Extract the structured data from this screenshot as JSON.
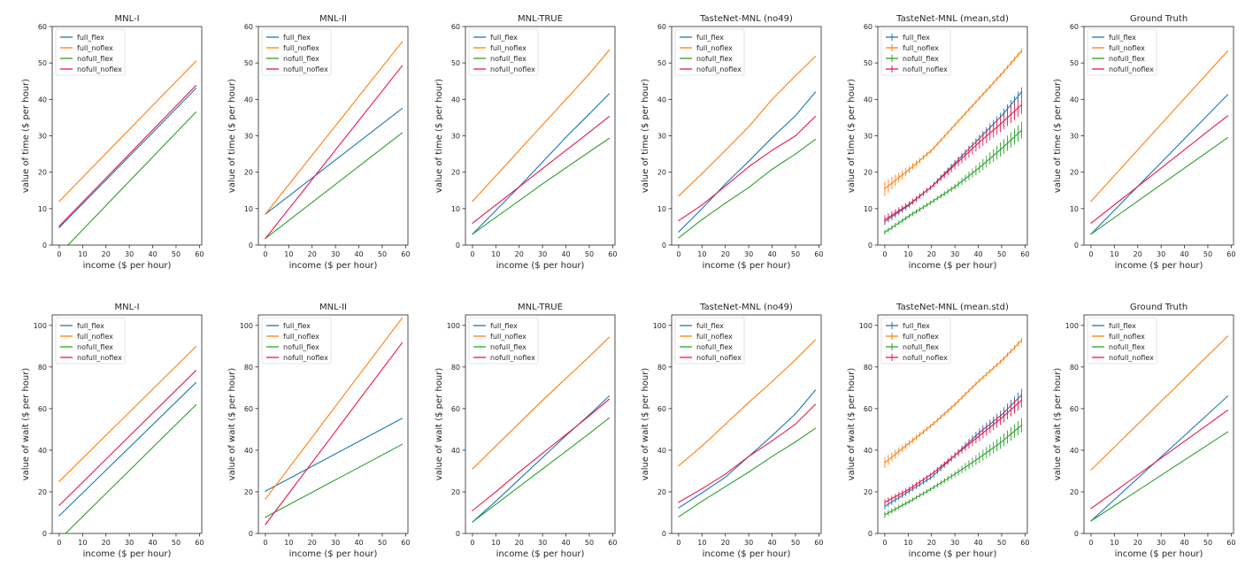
{
  "figure": {
    "description": "Grid of 12 line charts: value of time (top row) and value of wait (bottom row) vs income for four segments across six models"
  },
  "legend_labels": [
    "full_flex",
    "full_noflex",
    "nofull_flex",
    "nofull_noflex"
  ],
  "series_colors": {
    "full_flex": "#1f77b4",
    "full_noflex": "#ff7f0e",
    "nofull_flex": "#2ca02c",
    "nofull_noflex": "#e6194b"
  },
  "chart_data": [
    {
      "type": "line",
      "title": "MNL-I",
      "xlabel": "income ($ per hour)",
      "ylabel": "value of time ($ per hour)",
      "xlim": [
        -3,
        61
      ],
      "ylim": [
        0,
        60
      ],
      "xticks": [
        0,
        10,
        20,
        30,
        40,
        50,
        60
      ],
      "yticks": [
        0,
        10,
        20,
        30,
        40,
        50,
        60
      ],
      "legend": "top-left",
      "grid": false,
      "errorbars": false,
      "x": [
        0,
        58.5
      ],
      "series": [
        {
          "name": "full_flex",
          "values": [
            4.8,
            43.0
          ]
        },
        {
          "name": "full_noflex",
          "values": [
            12.0,
            50.5
          ]
        },
        {
          "name": "nofull_flex",
          "values": [
            -2.5,
            36.5
          ]
        },
        {
          "name": "nofull_noflex",
          "values": [
            5.2,
            43.8
          ]
        }
      ]
    },
    {
      "type": "line",
      "title": "MNL-II",
      "xlabel": "income ($ per hour)",
      "ylabel": "value of time ($ per hour)",
      "xlim": [
        -3,
        61
      ],
      "ylim": [
        0,
        60
      ],
      "xticks": [
        0,
        10,
        20,
        30,
        40,
        50,
        60
      ],
      "yticks": [
        0,
        10,
        20,
        30,
        40,
        50,
        60
      ],
      "legend": "top-left",
      "grid": false,
      "errorbars": false,
      "x": [
        0,
        58.5
      ],
      "series": [
        {
          "name": "full_flex",
          "values": [
            8.5,
            37.5
          ]
        },
        {
          "name": "full_noflex",
          "values": [
            8.5,
            55.8
          ]
        },
        {
          "name": "nofull_flex",
          "values": [
            1.8,
            30.8
          ]
        },
        {
          "name": "nofull_noflex",
          "values": [
            1.8,
            49.2
          ]
        }
      ]
    },
    {
      "type": "line",
      "title": "MNL-TRUE",
      "xlabel": "income ($ per hour)",
      "ylabel": "value of time ($ per hour)",
      "xlim": [
        -3,
        61
      ],
      "ylim": [
        0,
        60
      ],
      "xticks": [
        0,
        10,
        20,
        30,
        40,
        50,
        60
      ],
      "yticks": [
        0,
        10,
        20,
        30,
        40,
        50,
        60
      ],
      "legend": "top-left",
      "grid": false,
      "errorbars": false,
      "x": [
        0,
        10,
        20,
        30,
        40,
        50,
        58.5
      ],
      "series": [
        {
          "name": "full_flex",
          "values": [
            3.0,
            9.5,
            16.0,
            22.8,
            29.6,
            36.0,
            41.5
          ]
        },
        {
          "name": "full_noflex",
          "values": [
            12.0,
            19.0,
            26.0,
            33.0,
            40.0,
            47.0,
            53.5
          ]
        },
        {
          "name": "nofull_flex",
          "values": [
            3.0,
            7.6,
            12.2,
            16.8,
            21.2,
            25.6,
            29.3
          ]
        },
        {
          "name": "nofull_noflex",
          "values": [
            6.0,
            11.0,
            16.0,
            21.0,
            26.0,
            31.0,
            35.3
          ]
        }
      ]
    },
    {
      "type": "line",
      "title": "TasteNet-MNL (no49)",
      "xlabel": "income ($ per hour)",
      "ylabel": "value of time ($ per hour)",
      "xlim": [
        -3,
        61
      ],
      "ylim": [
        0,
        60
      ],
      "xticks": [
        0,
        10,
        20,
        30,
        40,
        50,
        60
      ],
      "yticks": [
        0,
        10,
        20,
        30,
        40,
        50,
        60
      ],
      "legend": "top-left",
      "grid": false,
      "errorbars": false,
      "x": [
        0,
        10,
        20,
        30,
        40,
        50,
        58.5
      ],
      "series": [
        {
          "name": "full_flex",
          "values": [
            3.6,
            10.0,
            16.8,
            23.0,
            29.5,
            35.5,
            42.0
          ]
        },
        {
          "name": "full_noflex",
          "values": [
            13.5,
            19.6,
            26.0,
            32.5,
            40.0,
            46.5,
            51.8
          ]
        },
        {
          "name": "nofull_flex",
          "values": [
            2.0,
            7.0,
            11.5,
            15.8,
            20.8,
            25.0,
            29.0
          ]
        },
        {
          "name": "nofull_noflex",
          "values": [
            6.7,
            11.0,
            16.2,
            21.5,
            26.0,
            30.0,
            35.3
          ]
        }
      ]
    },
    {
      "type": "line",
      "title": "TasteNet-MNL (mean,std)",
      "xlabel": "income ($ per hour)",
      "ylabel": "value of time ($ per hour)",
      "xlim": [
        -3,
        61
      ],
      "ylim": [
        0,
        60
      ],
      "xticks": [
        0,
        10,
        20,
        30,
        40,
        50,
        60
      ],
      "yticks": [
        0,
        10,
        20,
        30,
        40,
        50,
        60
      ],
      "legend": "top-left",
      "grid": false,
      "errorbars": true,
      "x": [
        0,
        10,
        20,
        30,
        40,
        50,
        58.5
      ],
      "series": [
        {
          "name": "full_flex",
          "values": [
            6.5,
            10.8,
            16.0,
            22.5,
            29.0,
            35.5,
            42.0
          ],
          "std": [
            1.0,
            0.8,
            0.6,
            0.8,
            1.0,
            1.2,
            1.3
          ]
        },
        {
          "name": "full_noflex",
          "values": [
            15.5,
            20.5,
            26.0,
            33.0,
            40.0,
            47.0,
            53.3
          ],
          "std": [
            2.0,
            1.0,
            0.5,
            0.5,
            0.5,
            0.5,
            0.6
          ]
        },
        {
          "name": "nofull_flex",
          "values": [
            3.5,
            7.8,
            11.8,
            16.0,
            21.0,
            26.5,
            31.5
          ],
          "std": [
            0.7,
            0.6,
            0.6,
            0.8,
            1.4,
            2.0,
            2.3
          ]
        },
        {
          "name": "nofull_noflex",
          "values": [
            7.0,
            11.0,
            16.0,
            22.0,
            28.0,
            33.5,
            38.5
          ],
          "std": [
            1.2,
            0.8,
            0.6,
            1.2,
            1.8,
            2.2,
            2.5
          ]
        }
      ]
    },
    {
      "type": "line",
      "title": "Ground Truth",
      "xlabel": "income ($ per hour)",
      "ylabel": "value of time ($ per hour)",
      "xlim": [
        -3,
        61
      ],
      "ylim": [
        0,
        60
      ],
      "xticks": [
        0,
        10,
        20,
        30,
        40,
        50,
        60
      ],
      "yticks": [
        0,
        10,
        20,
        30,
        40,
        50,
        60
      ],
      "legend": "top-left",
      "grid": false,
      "errorbars": false,
      "x": [
        0,
        58.5
      ],
      "series": [
        {
          "name": "full_flex",
          "values": [
            3.0,
            41.3
          ]
        },
        {
          "name": "full_noflex",
          "values": [
            12.0,
            53.3
          ]
        },
        {
          "name": "nofull_flex",
          "values": [
            3.0,
            29.5
          ]
        },
        {
          "name": "nofull_noflex",
          "values": [
            6.0,
            35.5
          ]
        }
      ]
    },
    {
      "type": "line",
      "title": "MNL-I",
      "xlabel": "income ($ per hour)",
      "ylabel": "value of wait ($ per hour)",
      "xlim": [
        -3,
        61
      ],
      "ylim": [
        0,
        105
      ],
      "xticks": [
        0,
        10,
        20,
        30,
        40,
        50,
        60
      ],
      "yticks": [
        0,
        20,
        40,
        60,
        80,
        100
      ],
      "legend": "top-left",
      "grid": false,
      "errorbars": false,
      "x": [
        0,
        58.5
      ],
      "series": [
        {
          "name": "full_flex",
          "values": [
            8.5,
            72.5
          ]
        },
        {
          "name": "full_noflex",
          "values": [
            25.0,
            89.8
          ]
        },
        {
          "name": "nofull_flex",
          "values": [
            -3.0,
            61.8
          ]
        },
        {
          "name": "nofull_noflex",
          "values": [
            13.5,
            78.3
          ]
        }
      ]
    },
    {
      "type": "line",
      "title": "MNL-II",
      "xlabel": "income ($ per hour)",
      "ylabel": "value of wait ($ per hour)",
      "xlim": [
        -3,
        61
      ],
      "ylim": [
        0,
        105
      ],
      "xticks": [
        0,
        10,
        20,
        30,
        40,
        50,
        60
      ],
      "yticks": [
        0,
        20,
        40,
        60,
        80,
        100
      ],
      "legend": "top-left",
      "grid": false,
      "errorbars": false,
      "x": [
        0,
        58.5
      ],
      "series": [
        {
          "name": "full_flex",
          "values": [
            20.3,
            55.3
          ]
        },
        {
          "name": "full_noflex",
          "values": [
            16.5,
            103.5
          ]
        },
        {
          "name": "nofull_flex",
          "values": [
            7.8,
            42.8
          ]
        },
        {
          "name": "nofull_noflex",
          "values": [
            4.3,
            91.6
          ]
        }
      ]
    },
    {
      "type": "line",
      "title": "MNL-TRUE",
      "xlabel": "income ($ per hour)",
      "ylabel": "value of wait ($ per hour)",
      "xlim": [
        -3,
        61
      ],
      "ylim": [
        0,
        105
      ],
      "xticks": [
        0,
        10,
        20,
        30,
        40,
        50,
        60
      ],
      "yticks": [
        0,
        20,
        40,
        60,
        80,
        100
      ],
      "legend": "top-left",
      "grid": false,
      "errorbars": false,
      "x": [
        0,
        10,
        20,
        30,
        40,
        50,
        58.5
      ],
      "series": [
        {
          "name": "full_flex",
          "values": [
            5.5,
            15.5,
            26.0,
            36.5,
            47.0,
            57.0,
            66.0
          ]
        },
        {
          "name": "full_noflex",
          "values": [
            31.0,
            42.0,
            53.0,
            64.0,
            74.5,
            85.0,
            94.3
          ]
        },
        {
          "name": "nofull_flex",
          "values": [
            5.5,
            14.0,
            22.5,
            31.0,
            39.5,
            48.0,
            55.5
          ]
        },
        {
          "name": "nofull_noflex",
          "values": [
            11.0,
            20.0,
            29.5,
            38.5,
            47.5,
            56.5,
            64.5
          ]
        }
      ]
    },
    {
      "type": "line",
      "title": "TasteNet-MNL (no49)",
      "xlabel": "income ($ per hour)",
      "ylabel": "value of wait ($ per hour)",
      "xlim": [
        -3,
        61
      ],
      "ylim": [
        0,
        105
      ],
      "xticks": [
        0,
        10,
        20,
        30,
        40,
        50,
        60
      ],
      "yticks": [
        0,
        20,
        40,
        60,
        80,
        100
      ],
      "legend": "top-left",
      "grid": false,
      "errorbars": false,
      "x": [
        0,
        10,
        20,
        30,
        40,
        50,
        58.5
      ],
      "series": [
        {
          "name": "full_flex",
          "values": [
            12.3,
            19.5,
            27.0,
            37.0,
            47.0,
            57.5,
            68.8
          ]
        },
        {
          "name": "full_noflex",
          "values": [
            32.5,
            42.0,
            52.5,
            63.0,
            73.0,
            83.5,
            93.0
          ]
        },
        {
          "name": "nofull_flex",
          "values": [
            8.0,
            15.5,
            22.5,
            29.5,
            37.0,
            44.0,
            50.5
          ]
        },
        {
          "name": "nofull_noflex",
          "values": [
            15.0,
            21.5,
            28.5,
            37.0,
            44.5,
            52.5,
            62.0
          ]
        }
      ]
    },
    {
      "type": "line",
      "title": "TasteNet-MNL (mean.std)",
      "xlabel": "income ($ per hour)",
      "ylabel": "value of wait ($ per hour)",
      "xlim": [
        -3,
        61
      ],
      "ylim": [
        0,
        105
      ],
      "xticks": [
        0,
        10,
        20,
        30,
        40,
        50,
        60
      ],
      "yticks": [
        0,
        20,
        40,
        60,
        80,
        100
      ],
      "legend": "top-left",
      "grid": false,
      "errorbars": true,
      "x": [
        0,
        10,
        20,
        30,
        40,
        50,
        58.5
      ],
      "series": [
        {
          "name": "full_flex",
          "values": [
            13.0,
            20.0,
            27.0,
            37.5,
            48.0,
            57.0,
            66.5
          ],
          "std": [
            1.5,
            1.2,
            1.0,
            1.5,
            2.0,
            2.5,
            3.0
          ]
        },
        {
          "name": "full_noflex",
          "values": [
            34.0,
            43.0,
            52.0,
            62.0,
            73.0,
            83.0,
            92.8
          ],
          "std": [
            2.5,
            1.5,
            1.0,
            1.0,
            1.0,
            1.0,
            1.2
          ]
        },
        {
          "name": "nofull_flex",
          "values": [
            9.0,
            15.0,
            21.5,
            28.5,
            36.0,
            44.0,
            52.0
          ],
          "std": [
            1.5,
            1.0,
            1.0,
            1.5,
            2.5,
            3.0,
            3.5
          ]
        },
        {
          "name": "nofull_noflex",
          "values": [
            15.0,
            21.0,
            28.5,
            37.5,
            46.5,
            55.5,
            64.0
          ],
          "std": [
            1.5,
            1.2,
            1.0,
            1.5,
            2.5,
            3.0,
            3.5
          ]
        }
      ]
    },
    {
      "type": "line",
      "title": "Ground Truth",
      "xlabel": "income ($ per hour)",
      "ylabel": "value of wait ($ per hour)",
      "xlim": [
        -3,
        61
      ],
      "ylim": [
        0,
        105
      ],
      "xticks": [
        0,
        10,
        20,
        30,
        40,
        50,
        60
      ],
      "yticks": [
        0,
        20,
        40,
        60,
        80,
        100
      ],
      "legend": "top-left",
      "grid": false,
      "errorbars": false,
      "x": [
        0,
        58.5
      ],
      "series": [
        {
          "name": "full_flex",
          "values": [
            6.0,
            66.0
          ]
        },
        {
          "name": "full_noflex",
          "values": [
            30.5,
            94.8
          ]
        },
        {
          "name": "nofull_flex",
          "values": [
            6.0,
            48.8
          ]
        },
        {
          "name": "nofull_noflex",
          "values": [
            12.0,
            59.2
          ]
        }
      ]
    }
  ]
}
